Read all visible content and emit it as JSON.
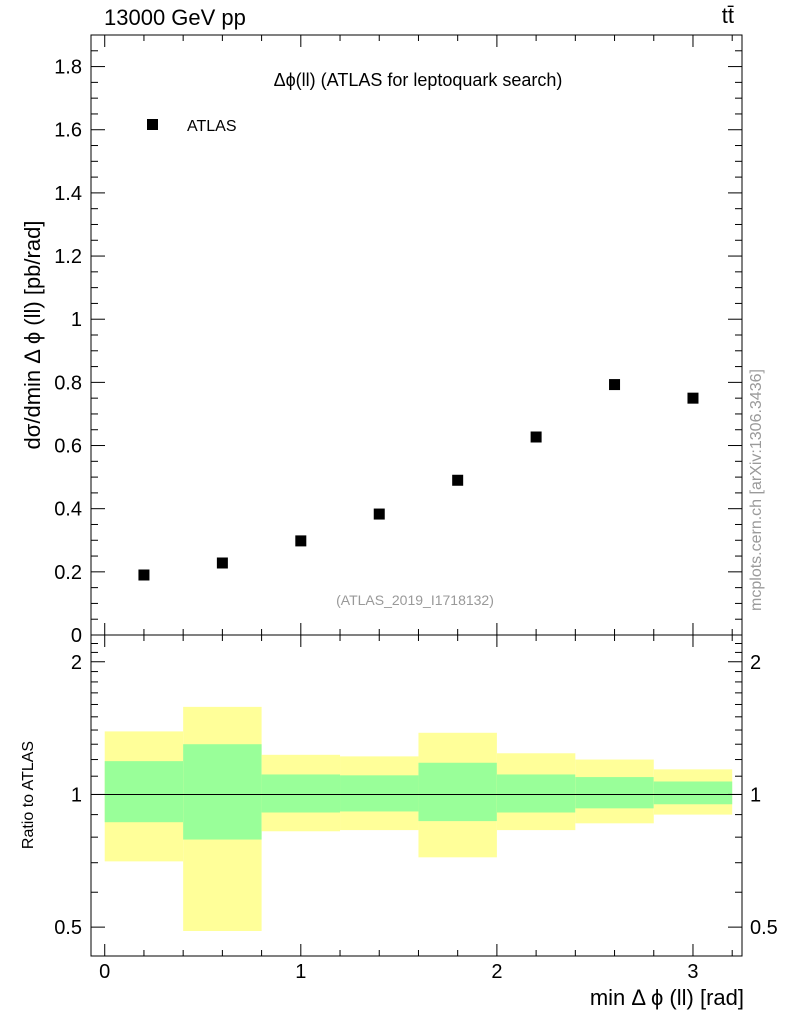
{
  "header": {
    "left": "13000 GeV pp",
    "right": "tt̄"
  },
  "watermark": "mcplots.cern.ch [arXiv:1306.3436]",
  "chart_data": [
    {
      "type": "scatter",
      "title": "Δϕ(ll) (ATLAS for leptoquark search)",
      "subtitle": "(ATLAS_2019_I1718132)",
      "ylabel": "dσ/dmin Δ ϕ (ll) [pb/rad]",
      "xlabel": "",
      "xlim": [
        -0.07,
        3.25
      ],
      "ylim": [
        0,
        1.9
      ],
      "legend": {
        "position": "top-left",
        "entries": [
          "ATLAS"
        ]
      },
      "x_ticks": [
        0,
        1,
        2,
        3
      ],
      "y_ticks": [
        0,
        0.2,
        0.4,
        0.6,
        0.8,
        1,
        1.2,
        1.4,
        1.6,
        1.8
      ],
      "y_tick_labels": [
        "0",
        "0.2",
        "0.4",
        "0.6",
        "0.8",
        "1",
        "1.2",
        "1.4",
        "1.6",
        "1.8"
      ],
      "series": [
        {
          "name": "ATLAS",
          "x": [
            0.2,
            0.6,
            1.0,
            1.4,
            1.8,
            2.2,
            2.6,
            3.0
          ],
          "y": [
            0.19,
            0.228,
            0.298,
            0.383,
            0.49,
            0.627,
            0.793,
            0.75
          ],
          "color": "#000000"
        }
      ]
    },
    {
      "type": "area",
      "ylabel": "Ratio to ATLAS",
      "xlabel": "min Δ ϕ (ll) [rad]",
      "xlim": [
        -0.07,
        3.25
      ],
      "ylim": [
        0.43,
        2.3
      ],
      "y_scale": "log",
      "reference_line": 1,
      "x_ticks": [
        0,
        1,
        2,
        3
      ],
      "x_tick_labels": [
        "0",
        "1",
        "2",
        "3"
      ],
      "y_ticks": [
        0.5,
        1,
        2
      ],
      "y_tick_labels": [
        "0.5",
        "1",
        "2"
      ],
      "bins": [
        {
          "lo": 0.0,
          "hi": 0.4,
          "stat_lo": 0.865,
          "stat_hi": 1.19,
          "tot_lo": 0.705,
          "tot_hi": 1.39
        },
        {
          "lo": 0.4,
          "hi": 0.8,
          "stat_lo": 0.79,
          "stat_hi": 1.3,
          "tot_lo": 0.49,
          "tot_hi": 1.58
        },
        {
          "lo": 0.8,
          "hi": 1.2,
          "stat_lo": 0.91,
          "stat_hi": 1.11,
          "tot_lo": 0.825,
          "tot_hi": 1.23
        },
        {
          "lo": 1.2,
          "hi": 1.6,
          "stat_lo": 0.915,
          "stat_hi": 1.105,
          "tot_lo": 0.83,
          "tot_hi": 1.22
        },
        {
          "lo": 1.6,
          "hi": 2.0,
          "stat_lo": 0.87,
          "stat_hi": 1.18,
          "tot_lo": 0.72,
          "tot_hi": 1.38
        },
        {
          "lo": 2.0,
          "hi": 2.4,
          "stat_lo": 0.91,
          "stat_hi": 1.11,
          "tot_lo": 0.83,
          "tot_hi": 1.24
        },
        {
          "lo": 2.4,
          "hi": 2.8,
          "stat_lo": 0.93,
          "stat_hi": 1.095,
          "tot_lo": 0.86,
          "tot_hi": 1.2
        },
        {
          "lo": 2.8,
          "hi": 3.2,
          "stat_lo": 0.95,
          "stat_hi": 1.07,
          "tot_lo": 0.9,
          "tot_hi": 1.14
        }
      ],
      "colors": {
        "stat": "#99ff99",
        "total": "#ffff99",
        "line": "#000000"
      }
    }
  ]
}
